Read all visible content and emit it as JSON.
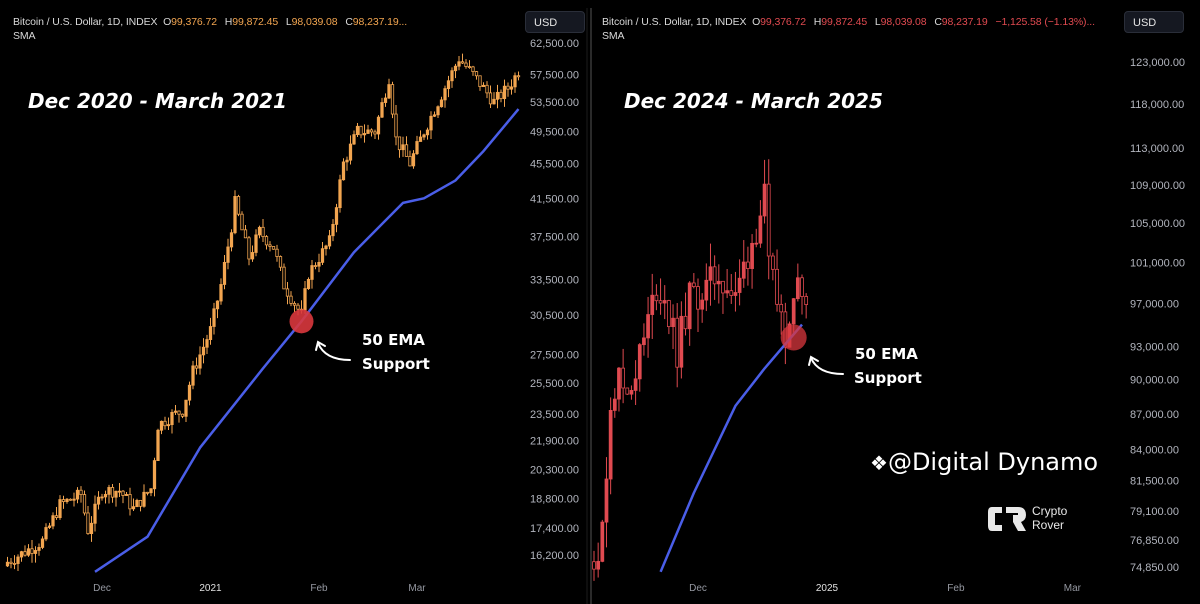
{
  "chart_data": [
    {
      "type": "candlestick",
      "title": "Dec 2020 - March 2021",
      "header": {
        "symbol": "Bitcoin / U.S. Dollar, 1D, INDEX",
        "o_label": "O",
        "o": "99,376.72",
        "h_label": "H",
        "h": "99,872.45",
        "l_label": "L",
        "l": "98,039.08",
        "c_label": "C",
        "c": "98,237.19...",
        "indicator": "SMA"
      },
      "currency": "USD",
      "y_scale": "log",
      "ylim": [
        16200,
        62500
      ],
      "y_ticks": [
        "62,500.00",
        "57,500.00",
        "53,500.00",
        "49,500.00",
        "45,500.00",
        "41,500.00",
        "37,500.00",
        "33,500.00",
        "30,500.00",
        "27,500.00",
        "25,500.00",
        "23,500.00",
        "21,900.00",
        "20,300.00",
        "18,800.00",
        "17,400.00",
        "16,200.00"
      ],
      "x_ticks": [
        {
          "label": "Dec",
          "date": "2020-12-01",
          "bold": false
        },
        {
          "label": "2021",
          "date": "2021-01-01",
          "bold": true
        },
        {
          "label": "Feb",
          "date": "2021-02-01",
          "bold": false
        },
        {
          "label": "Mar",
          "date": "2021-03-01",
          "bold": false
        }
      ],
      "candle_color": "#f2a550",
      "close_path": [
        [
          "2020-11-04",
          15900
        ],
        [
          "2020-11-14",
          16800
        ],
        [
          "2020-11-19",
          18500
        ],
        [
          "2020-11-25",
          19000
        ],
        [
          "2020-11-27",
          17300
        ],
        [
          "2020-12-01",
          19200
        ],
        [
          "2020-12-06",
          19200
        ],
        [
          "2020-12-10",
          18300
        ],
        [
          "2020-12-15",
          19300
        ],
        [
          "2020-12-17",
          22800
        ],
        [
          "2020-12-21",
          23400
        ],
        [
          "2020-12-24",
          23700
        ],
        [
          "2020-12-27",
          26300
        ],
        [
          "2021-01-01",
          29300
        ],
        [
          "2021-01-04",
          33000
        ],
        [
          "2021-01-07",
          38500
        ],
        [
          "2021-01-08",
          41000
        ],
        [
          "2021-01-12",
          35500
        ],
        [
          "2021-01-15",
          38000
        ],
        [
          "2021-01-19",
          36500
        ],
        [
          "2021-01-22",
          33000
        ],
        [
          "2021-01-27",
          30500
        ],
        [
          "2021-01-29",
          34000
        ],
        [
          "2021-02-04",
          37000
        ],
        [
          "2021-02-08",
          45500
        ],
        [
          "2021-02-12",
          49500
        ],
        [
          "2021-02-17",
          49500
        ],
        [
          "2021-02-21",
          57000
        ],
        [
          "2021-02-23",
          48500
        ],
        [
          "2021-02-27",
          45500
        ],
        [
          "2021-03-03",
          49500
        ],
        [
          "2021-03-07",
          53500
        ],
        [
          "2021-03-13",
          60000
        ],
        [
          "2021-03-17",
          57500
        ],
        [
          "2021-03-23",
          53500
        ],
        [
          "2021-03-27",
          55500
        ],
        [
          "2021-03-30",
          58000
        ]
      ],
      "ema_label": "50 EMA",
      "ema_color": "#4a5ee8",
      "ema": [
        [
          "2020-11-29",
          15500
        ],
        [
          "2020-12-14",
          17000
        ],
        [
          "2020-12-29",
          21500
        ],
        [
          "2021-01-16",
          26500
        ],
        [
          "2021-01-27",
          30000
        ],
        [
          "2021-02-11",
          36000
        ],
        [
          "2021-02-25",
          41000
        ],
        [
          "2021-03-03",
          41500
        ],
        [
          "2021-03-12",
          43500
        ],
        [
          "2021-03-20",
          47000
        ],
        [
          "2021-03-30",
          52500
        ]
      ],
      "support_point": [
        "2021-01-27",
        30000
      ],
      "annotation": [
        "50 EMA",
        "Support"
      ],
      "highlight_color": "#d9373d"
    },
    {
      "type": "candlestick",
      "title": "Dec 2024 - March 2025",
      "header": {
        "symbol": "Bitcoin / U.S. Dollar, 1D, INDEX",
        "o_label": "O",
        "o": "99,376.72",
        "h_label": "H",
        "h": "99,872.45",
        "l_label": "L",
        "l": "98,039.08",
        "c_label": "C",
        "c": "98,237.19",
        "change": "−1,125.58 (−1.13%)...",
        "indicator": "SMA"
      },
      "currency": "USD",
      "y_scale": "log",
      "ylim": [
        74850,
        123000
      ],
      "y_ticks": [
        "123,000.00",
        "118,000.00",
        "113,000.00",
        "109,000.00",
        "105,000.00",
        "101,000.00",
        "97,000.00",
        "93,000.00",
        "90,000.00",
        "87,000.00",
        "84,000.00",
        "81,500.00",
        "79,100.00",
        "76,850.00",
        "74,850.00"
      ],
      "x_ticks": [
        {
          "label": "Dec",
          "date": "2024-12-01",
          "bold": false
        },
        {
          "label": "2025",
          "date": "2025-01-01",
          "bold": true
        },
        {
          "label": "Feb",
          "date": "2025-02-01",
          "bold": false
        },
        {
          "label": "Mar",
          "date": "2025-03-01",
          "bold": false
        }
      ],
      "candle_color": "#e04a50",
      "close_path": [
        [
          "2024-11-06",
          76000
        ],
        [
          "2024-11-08",
          77000
        ],
        [
          "2024-11-10",
          88500
        ],
        [
          "2024-11-12",
          90000
        ],
        [
          "2024-11-14",
          89000
        ],
        [
          "2024-11-17",
          92000
        ],
        [
          "2024-11-21",
          98500
        ],
        [
          "2024-11-23",
          97500
        ],
        [
          "2024-11-26",
          92500
        ],
        [
          "2024-11-29",
          97500
        ],
        [
          "2024-12-03",
          98300
        ],
        [
          "2024-12-06",
          100000
        ],
        [
          "2024-12-10",
          97200
        ],
        [
          "2024-12-12",
          100500
        ],
        [
          "2024-12-15",
          104500
        ],
        [
          "2024-12-17",
          107500
        ],
        [
          "2024-12-18",
          100000
        ],
        [
          "2024-12-20",
          97300
        ],
        [
          "2024-12-22",
          94500
        ],
        [
          "2024-12-24",
          98500
        ],
        [
          "2024-12-27",
          98500
        ]
      ],
      "ema_label": "50 EMA",
      "ema_color": "#4a5ee8",
      "ema": [
        [
          "2024-11-22",
          74500
        ],
        [
          "2024-11-30",
          80500
        ],
        [
          "2024-12-10",
          87700
        ],
        [
          "2024-12-17",
          91000
        ],
        [
          "2024-12-26",
          95000
        ]
      ],
      "support_point": [
        "2024-12-24",
        93800
      ],
      "annotation": [
        "50 EMA",
        "Support"
      ],
      "highlight_color": "#d9373d"
    }
  ],
  "watermark": {
    "text": "@Digital Dynamo",
    "logo_text": [
      "Crypto",
      "Rover"
    ]
  }
}
